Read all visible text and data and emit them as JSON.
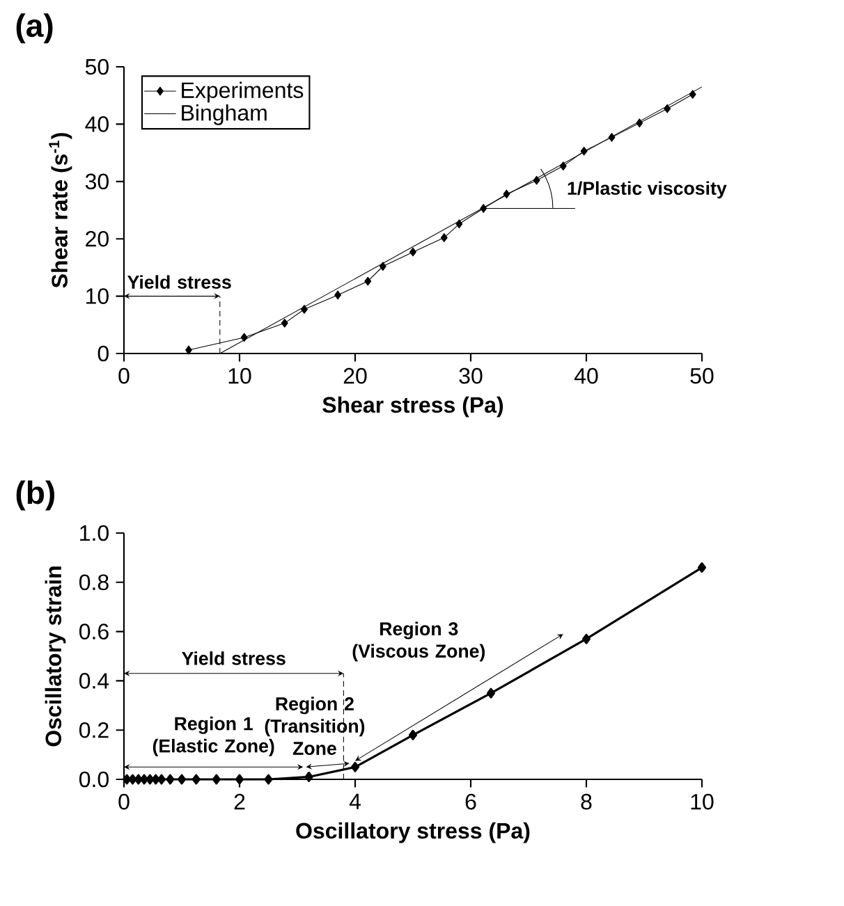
{
  "chart_data": [
    {
      "type": "line",
      "title": "(a)",
      "xlabel": "Shear stress (Pa)",
      "ylabel": "Shear rate (s$^{-1}$)",
      "xlim": [
        0,
        50
      ],
      "ylim": [
        0,
        50
      ],
      "xticks": [
        0,
        10,
        20,
        30,
        40,
        50
      ],
      "yticks": [
        0,
        10,
        20,
        30,
        40,
        50
      ],
      "legend": "top left",
      "grid": false,
      "series": [
        {
          "name": "Experiments",
          "color": "#000000",
          "marker": "diamond",
          "x": [
            5.6,
            10.4,
            13.9,
            15.6,
            18.5,
            21.1,
            22.4,
            25.0,
            27.7,
            29.0,
            31.1,
            33.1,
            35.7,
            38.0,
            39.8,
            42.2,
            44.6,
            47.0,
            49.2
          ],
          "values": [
            0.6,
            2.8,
            5.3,
            7.7,
            10.2,
            12.6,
            15.2,
            17.7,
            20.2,
            22.6,
            25.3,
            27.8,
            30.2,
            32.7,
            35.3,
            37.7,
            40.2,
            42.7,
            45.2
          ]
        },
        {
          "name": "Bingham",
          "color": "#000000",
          "marker": "none",
          "x": [
            8.3,
            50
          ],
          "values": [
            0,
            46.5
          ]
        }
      ],
      "annotations": [
        {
          "text": "Yield stress",
          "x": 8.3,
          "y": 0
        },
        {
          "text": "1/Plastic viscosity",
          "x": 31,
          "y": 25.3
        }
      ]
    },
    {
      "type": "line",
      "title": "(b)",
      "xlabel": "Oscillatory stress (Pa)",
      "ylabel": "Oscillatory strain",
      "xlim": [
        0,
        10
      ],
      "ylim": [
        0,
        1
      ],
      "xticks": [
        0,
        2,
        4,
        6,
        8,
        10
      ],
      "yticks": [
        {
          "value": 0,
          "label": "0.0"
        },
        {
          "value": 0.2,
          "label": "0.2"
        },
        {
          "value": 0.4,
          "label": "0.4"
        },
        {
          "value": 0.6,
          "label": "0.6"
        },
        {
          "value": 0.8,
          "label": "0.8"
        },
        {
          "value": 1,
          "label": "1.0"
        }
      ],
      "grid": false,
      "series": [
        {
          "color": "#000000",
          "marker": "diamond",
          "x": [
            0.05,
            0.15,
            0.25,
            0.35,
            0.45,
            0.55,
            0.65,
            0.8,
            1.0,
            1.25,
            1.6,
            2.0,
            2.5,
            3.2,
            4.0,
            5.0,
            6.35,
            8.0,
            10.0
          ],
          "values": [
            0,
            0,
            0,
            0,
            0,
            0,
            0,
            0,
            0,
            0,
            0,
            0,
            0,
            0.01,
            0.05,
            0.18,
            0.35,
            0.57,
            0.86
          ]
        }
      ],
      "annotations": [
        "Yield stress",
        "Region 1 (Elastic Zone)",
        "Region 2 (Transition) Zone",
        "Region 3 (Viscous Zone)"
      ]
    }
  ]
}
